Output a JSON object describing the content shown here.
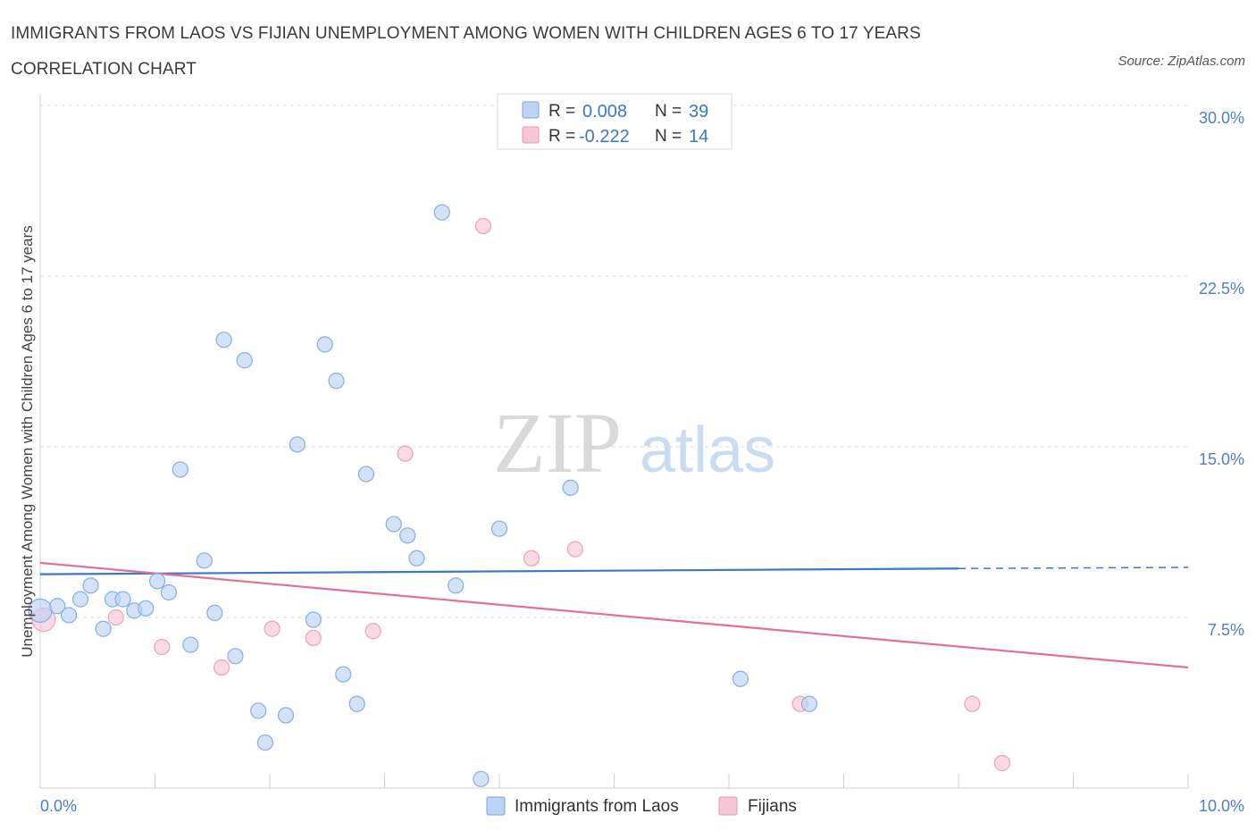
{
  "title": "IMMIGRANTS FROM LAOS VS FIJIAN UNEMPLOYMENT AMONG WOMEN WITH CHILDREN AGES 6 TO 17 YEARS CORRELATION CHART",
  "source": "Source: ZipAtlas.com",
  "watermark": {
    "zip": "ZIP",
    "atlas": "atlas"
  },
  "colors": {
    "blue": "#3a78c9",
    "pink": "#e36f98",
    "blue_fill": "#bcd3f3",
    "pink_fill": "#f6c6d6"
  },
  "legend": {
    "rows": [
      {
        "r_label": "R = ",
        "r_value": "0.008",
        "n_label": "N = ",
        "n_value": "39"
      },
      {
        "r_label": "R = ",
        "r_value": "-0.222",
        "n_label": "N = ",
        "n_value": "14"
      }
    ]
  },
  "chart_data": {
    "type": "scatter",
    "xlabel": "",
    "ylabel": "Unemployment Among Women with Children Ages 6 to 17 years",
    "xlim": [
      0,
      10
    ],
    "ylim": [
      0,
      30
    ],
    "x_tick_labels": [
      {
        "value": 0,
        "label": "0.0%"
      },
      {
        "value": 10,
        "label": "10.0%"
      }
    ],
    "y_tick_labels": [
      {
        "value": 7.5,
        "label": "7.5%"
      },
      {
        "value": 15,
        "label": "15.0%"
      },
      {
        "value": 22.5,
        "label": "22.5%"
      },
      {
        "value": 30,
        "label": "30.0%"
      }
    ],
    "grid": true,
    "legend_position": "top-center",
    "series": [
      {
        "name": "Immigrants from Laos",
        "color": "#3a78c9",
        "trend": {
          "x0": 0,
          "y0": 9.4,
          "x1": 8.0,
          "y1": 9.65,
          "dashed_to": 10,
          "dashed_y": 9.7
        },
        "points": [
          [
            0.0,
            7.8
          ],
          [
            0.15,
            8.0
          ],
          [
            0.25,
            7.6
          ],
          [
            0.35,
            8.3
          ],
          [
            0.44,
            8.9
          ],
          [
            0.55,
            7.0
          ],
          [
            0.63,
            8.3
          ],
          [
            0.72,
            8.3
          ],
          [
            0.82,
            7.8
          ],
          [
            0.92,
            7.9
          ],
          [
            1.02,
            9.1
          ],
          [
            1.12,
            8.6
          ],
          [
            1.22,
            14.0
          ],
          [
            1.31,
            6.3
          ],
          [
            1.43,
            10.0
          ],
          [
            1.52,
            7.7
          ],
          [
            1.6,
            19.7
          ],
          [
            1.7,
            5.8
          ],
          [
            1.78,
            18.8
          ],
          [
            1.9,
            3.4
          ],
          [
            1.96,
            2.0
          ],
          [
            2.14,
            3.2
          ],
          [
            2.24,
            15.1
          ],
          [
            2.38,
            7.4
          ],
          [
            2.48,
            19.5
          ],
          [
            2.58,
            17.9
          ],
          [
            2.64,
            5.0
          ],
          [
            2.76,
            3.7
          ],
          [
            2.84,
            13.8
          ],
          [
            3.08,
            11.6
          ],
          [
            3.2,
            11.1
          ],
          [
            3.28,
            10.1
          ],
          [
            3.5,
            25.3
          ],
          [
            3.62,
            8.9
          ],
          [
            3.84,
            0.4
          ],
          [
            4.0,
            11.4
          ],
          [
            4.62,
            13.2
          ],
          [
            6.1,
            4.8
          ],
          [
            6.7,
            3.7
          ]
        ]
      },
      {
        "name": "Fijians",
        "color": "#e36f98",
        "trend": {
          "x0": 0,
          "y0": 9.9,
          "x1": 10,
          "y1": 5.3
        },
        "points": [
          [
            0.03,
            7.4
          ],
          [
            0.66,
            7.5
          ],
          [
            1.06,
            6.2
          ],
          [
            1.58,
            5.3
          ],
          [
            2.02,
            7.0
          ],
          [
            2.38,
            6.6
          ],
          [
            2.9,
            6.9
          ],
          [
            3.18,
            14.7
          ],
          [
            3.86,
            24.7
          ],
          [
            4.28,
            10.1
          ],
          [
            4.66,
            10.5
          ],
          [
            6.62,
            3.7
          ],
          [
            8.12,
            3.7
          ],
          [
            8.38,
            1.1
          ]
        ]
      }
    ]
  }
}
